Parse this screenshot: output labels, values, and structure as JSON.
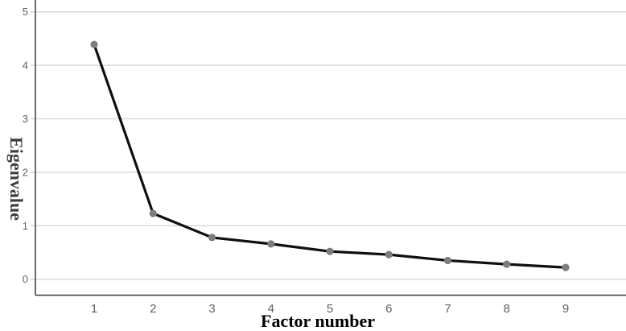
{
  "chart_data": {
    "type": "line",
    "title": "",
    "xlabel": "Factor number",
    "ylabel": "Eigenvalue",
    "x": [
      1,
      2,
      3,
      4,
      5,
      6,
      7,
      8,
      9
    ],
    "values": [
      4.39,
      1.23,
      0.78,
      0.66,
      0.52,
      0.46,
      0.35,
      0.28,
      0.22
    ],
    "xticks": [
      "1",
      "2",
      "3",
      "4",
      "5",
      "6",
      "7",
      "8",
      "9"
    ],
    "yticks": [
      "0",
      "1",
      "2",
      "3",
      "4",
      "5"
    ],
    "ylim": [
      0,
      5.3
    ],
    "xlim": [
      0,
      10
    ],
    "grid": "horizontal",
    "legend": "none",
    "marker": "circle",
    "colors": {
      "line": "#0f0f0f",
      "marker": "#7d7d7d",
      "gridline": "#d9d9d9",
      "axis": "#3a3a3a",
      "tick_label": "#5f5f5f",
      "xlabel_color": "#000000",
      "ylabel_color": "#3d3d3d"
    }
  }
}
